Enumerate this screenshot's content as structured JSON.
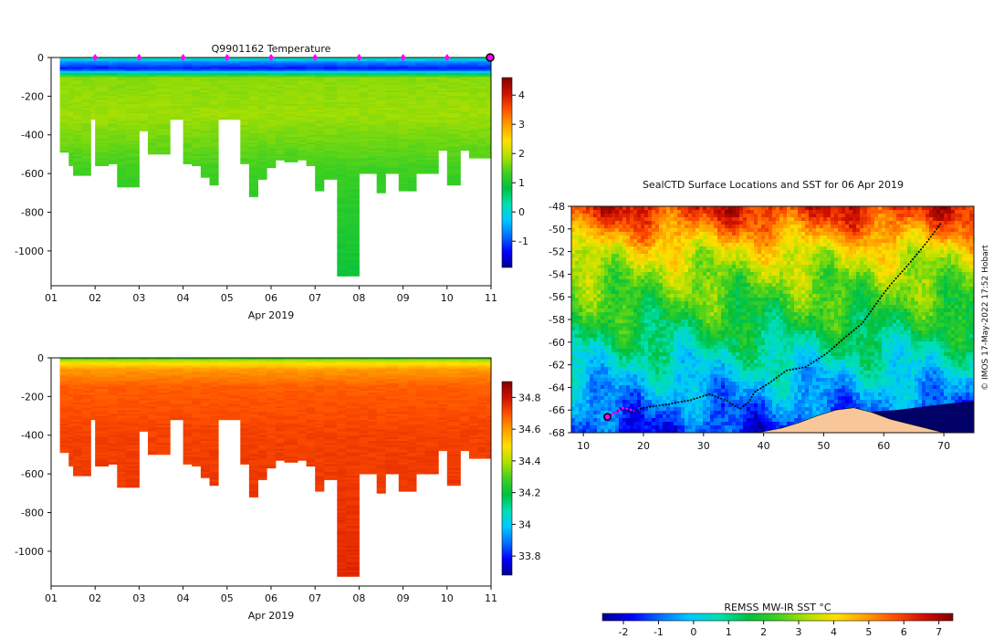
{
  "chart_data": [
    {
      "type": "heatmap",
      "variable": "temperature",
      "title": "Q9901162  Temperature",
      "xlabel": "Apr 2019",
      "x_ticks": [
        "01",
        "02",
        "03",
        "04",
        "05",
        "06",
        "07",
        "08",
        "09",
        "10",
        "11"
      ],
      "xlim": [
        1,
        11
      ],
      "ylim": [
        -1180,
        0
      ],
      "y_ticks": [
        0,
        -200,
        -400,
        -600,
        -800,
        -1000
      ],
      "y_tick_labels": [
        "0",
        "-200",
        "-400",
        "-600",
        "-800",
        "-1000"
      ],
      "colorbar": {
        "range": [
          -1.9,
          4.6
        ],
        "ticks": [
          -1,
          0,
          1,
          2,
          3,
          4
        ],
        "tick_labels": [
          "-1",
          "0",
          "1",
          "2",
          "3",
          "4"
        ]
      },
      "surface_markers_day": [
        2,
        3,
        4,
        5,
        6,
        7,
        8,
        9,
        10
      ],
      "highlight_marker_day": 11,
      "profiles_day": [
        1.2,
        1.4,
        1.5,
        1.7,
        1.9,
        2.0,
        2.3,
        2.5,
        2.7,
        3.0,
        3.2,
        3.4,
        3.7,
        4.0,
        4.2,
        4.4,
        4.6,
        4.8,
        5.0,
        5.3,
        5.5,
        5.7,
        5.9,
        6.1,
        6.3,
        6.6,
        6.8,
        7.0,
        7.2,
        7.5,
        7.7,
        8.0,
        8.2,
        8.4,
        8.6,
        8.9,
        9.1,
        9.3,
        9.5,
        9.8,
        10.0,
        10.3,
        10.5,
        10.7,
        10.9,
        11.0
      ],
      "profiles_max_depth": [
        490,
        560,
        610,
        610,
        320,
        560,
        550,
        670,
        670,
        380,
        500,
        500,
        320,
        550,
        560,
        620,
        660,
        320,
        320,
        550,
        720,
        630,
        570,
        530,
        540,
        530,
        560,
        690,
        630,
        1130,
        1130,
        600,
        600,
        700,
        600,
        690,
        690,
        600,
        600,
        480,
        660,
        480,
        520,
        520,
        520,
        520
      ],
      "color_at_depth": [
        {
          "depth": 0,
          "value": 0.4
        },
        {
          "depth": 20,
          "value": -0.6
        },
        {
          "depth": 60,
          "value": -1.3
        },
        {
          "depth": 100,
          "value": 1.7
        },
        {
          "depth": 300,
          "value": 1.8
        },
        {
          "depth": 600,
          "value": 1.3
        },
        {
          "depth": 1130,
          "value": 0.9
        }
      ]
    },
    {
      "type": "heatmap",
      "variable": "salinity",
      "title": "",
      "xlabel": "Apr 2019",
      "x_ticks": [
        "01",
        "02",
        "03",
        "04",
        "05",
        "06",
        "07",
        "08",
        "09",
        "10",
        "11"
      ],
      "xlim": [
        1,
        11
      ],
      "ylim": [
        -1180,
        0
      ],
      "y_ticks": [
        0,
        -200,
        -400,
        -600,
        -800,
        -1000
      ],
      "y_tick_labels": [
        "0",
        "-200",
        "-400",
        "-600",
        "-800",
        "-1000"
      ],
      "colorbar": {
        "range": [
          33.68,
          34.9
        ],
        "ticks": [
          33.8,
          34.0,
          34.2,
          34.4,
          34.6,
          34.8
        ],
        "tick_labels": [
          "33.8",
          "34",
          "34.2",
          "34.4",
          "34.6",
          "34.8"
        ]
      },
      "color_at_depth": [
        {
          "depth": 0,
          "value": 34.25
        },
        {
          "depth": 20,
          "value": 34.45
        },
        {
          "depth": 60,
          "value": 34.6
        },
        {
          "depth": 150,
          "value": 34.68
        },
        {
          "depth": 400,
          "value": 34.72
        },
        {
          "depth": 1130,
          "value": 34.76
        }
      ]
    },
    {
      "type": "map",
      "title": "SealCTD Surface Locations and SST for 06 Apr 2019",
      "xlim": [
        8,
        75
      ],
      "ylim": [
        -68,
        -48
      ],
      "x_ticks": [
        10,
        20,
        30,
        40,
        50,
        60,
        70
      ],
      "x_tick_labels": [
        "10",
        "20",
        "30",
        "40",
        "50",
        "60",
        "70"
      ],
      "y_ticks": [
        -48,
        -50,
        -52,
        -54,
        -56,
        -58,
        -60,
        -62,
        -64,
        -66,
        -68
      ],
      "y_tick_labels": [
        "-48",
        "-50",
        "-52",
        "-54",
        "-56",
        "-58",
        "-60",
        "-62",
        "-64",
        "-66",
        "-68"
      ],
      "sst_lat_profile": [
        {
          "lat": -48,
          "sst": 6.4
        },
        {
          "lat": -50,
          "sst": 5.2
        },
        {
          "lat": -52,
          "sst": 3.8
        },
        {
          "lat": -54,
          "sst": 3.0
        },
        {
          "lat": -56,
          "sst": 2.4
        },
        {
          "lat": -58,
          "sst": 1.8
        },
        {
          "lat": -60,
          "sst": 1.1
        },
        {
          "lat": -62,
          "sst": 0.4
        },
        {
          "lat": -64,
          "sst": -0.3
        },
        {
          "lat": -66,
          "sst": -0.9
        },
        {
          "lat": -68,
          "sst": -1.5
        }
      ],
      "track_lon_lat": [
        [
          69.5,
          -49.5
        ],
        [
          67,
          -51.3
        ],
        [
          64,
          -53.2
        ],
        [
          61,
          -55
        ],
        [
          59,
          -56.4
        ],
        [
          56.5,
          -58.3
        ],
        [
          53.5,
          -59.6
        ],
        [
          50.5,
          -61
        ],
        [
          47,
          -62.2
        ],
        [
          43.8,
          -62.5
        ],
        [
          41,
          -63.6
        ],
        [
          38.5,
          -64.4
        ],
        [
          37.5,
          -65.3
        ],
        [
          36,
          -65.9
        ],
        [
          34,
          -65.2
        ],
        [
          31,
          -64.6
        ],
        [
          28,
          -65.1
        ],
        [
          24,
          -65.5
        ],
        [
          20,
          -65.8
        ],
        [
          18,
          -66.2
        ],
        [
          16.5,
          -65.8
        ],
        [
          15,
          -66.3
        ],
        [
          14,
          -66.6
        ]
      ],
      "recent_track_lon_lat": [
        [
          14,
          -66.6
        ],
        [
          15,
          -66.3
        ],
        [
          16.5,
          -65.8
        ],
        [
          17.5,
          -65.9
        ],
        [
          18.5,
          -66.1
        ]
      ],
      "current_position": [
        14,
        -66.6
      ],
      "land_polygon_lon_lat": [
        [
          39,
          -68
        ],
        [
          43,
          -67.6
        ],
        [
          46,
          -67.1
        ],
        [
          49,
          -66.5
        ],
        [
          52,
          -66
        ],
        [
          55,
          -65.8
        ],
        [
          58,
          -66.2
        ],
        [
          61,
          -66.8
        ],
        [
          64,
          -67.2
        ],
        [
          67,
          -67.6
        ],
        [
          70,
          -68
        ]
      ],
      "no_data_color": "#000066",
      "land_color": "#f7c79a",
      "colorbar_label": "REMSS MW-IR SST °C",
      "colorbar": {
        "range": [
          -2.6,
          7.4
        ],
        "ticks": [
          -2,
          -1,
          0,
          1,
          2,
          3,
          4,
          5,
          6,
          7
        ],
        "tick_labels": [
          "-2",
          "-1",
          "0",
          "1",
          "2",
          "3",
          "4",
          "5",
          "6",
          "7"
        ]
      }
    }
  ],
  "credit": "© IMOS 17-May-2022 17:52 Hobart",
  "colors": {
    "marker_magenta": "#ff00ff",
    "highlight_fill": "#ff00ff",
    "track": "#000000",
    "colormap_stops": [
      "#00008f",
      "#0000ff",
      "#0070ff",
      "#00c8ff",
      "#00e0b0",
      "#00c040",
      "#40d020",
      "#b0e000",
      "#ffe000",
      "#ffa000",
      "#ff5000",
      "#d01000",
      "#800000"
    ]
  }
}
